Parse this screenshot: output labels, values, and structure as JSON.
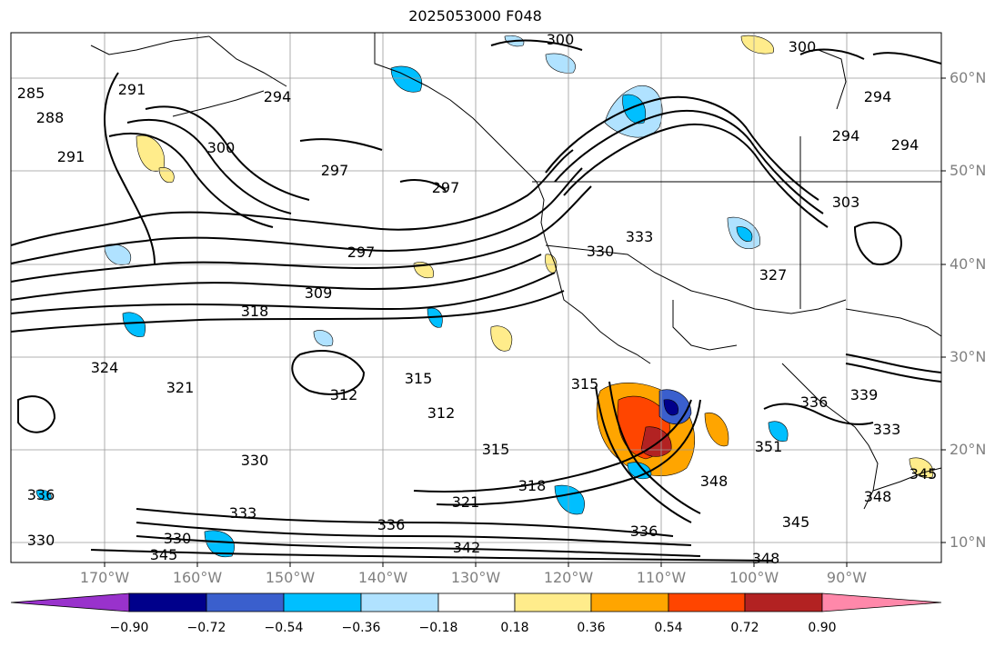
{
  "title": "2025053000 F048",
  "lat_labels": [
    "60°N",
    "50°N",
    "40°N",
    "30°N",
    "20°N",
    "10°N"
  ],
  "lon_labels": [
    "170°W",
    "160°W",
    "150°W",
    "140°W",
    "130°W",
    "120°W",
    "110°W",
    "100°W",
    "90°W"
  ],
  "colorbar": {
    "ticks": [
      "−0.90",
      "−0.72",
      "−0.54",
      "−0.36",
      "−0.18",
      "0.18",
      "0.36",
      "0.54",
      "0.72",
      "0.90"
    ],
    "colors": [
      "#9932cc",
      "#00008b",
      "#3a5fcd",
      "#00bfff",
      "#b0e2ff",
      "#ffffff",
      "#ffec8b",
      "#ffa500",
      "#ff4500",
      "#b22222",
      "#ff88aa"
    ]
  },
  "contour_labels": [
    "300",
    "300",
    "291",
    "294",
    "285",
    "288",
    "291",
    "300",
    "297",
    "297",
    "297",
    "309",
    "318",
    "324",
    "321",
    "312",
    "315",
    "312",
    "315",
    "330",
    "333",
    "336",
    "336",
    "330",
    "345",
    "342",
    "321",
    "318",
    "315",
    "336",
    "348",
    "345",
    "348",
    "327",
    "330",
    "333",
    "294",
    "294",
    "294",
    "303",
    "336",
    "339",
    "345",
    "348",
    "333",
    "351",
    "330"
  ]
}
